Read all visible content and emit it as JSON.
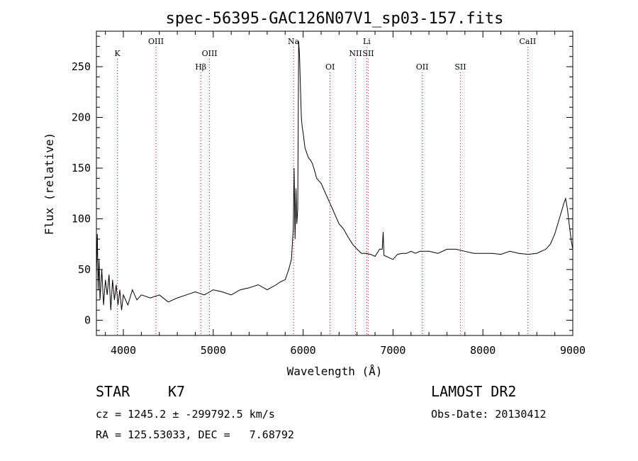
{
  "chart_data": {
    "type": "line",
    "title": "spec-56395-GAC126N07V1_sp03-157.fits",
    "xlabel": "Wavelength (Å)",
    "ylabel": "Flux (relative)",
    "xlim": [
      3700,
      9000
    ],
    "ylim": [
      -15,
      285
    ],
    "x_ticks": [
      4000,
      5000,
      6000,
      7000,
      8000,
      9000
    ],
    "y_ticks": [
      0,
      50,
      100,
      150,
      200,
      250
    ],
    "grid": false,
    "series": [
      {
        "x": [
          3700,
          3710,
          3720,
          3730,
          3740,
          3760,
          3780,
          3800,
          3820,
          3840,
          3860,
          3880,
          3900,
          3920,
          3940,
          3960,
          3980,
          4000,
          4050,
          4100,
          4150,
          4200,
          4300,
          4400,
          4500,
          4600,
          4700,
          4800,
          4900,
          5000,
          5100,
          5200,
          5300,
          5400,
          5500,
          5600,
          5700,
          5750,
          5800,
          5840,
          5870,
          5890,
          5900,
          5910,
          5920,
          5930,
          5940,
          5950,
          5960,
          5970,
          5980,
          5990,
          6000,
          6020,
          6040,
          6060,
          6080,
          6100,
          6120,
          6150,
          6200,
          6250,
          6300,
          6350,
          6400,
          6450,
          6500,
          6550,
          6600,
          6650,
          6700,
          6750,
          6800,
          6850,
          6880,
          6890,
          6900,
          6950,
          7000,
          7050,
          7100,
          7150,
          7200,
          7250,
          7300,
          7400,
          7500,
          7600,
          7700,
          7800,
          7900,
          8000,
          8100,
          8200,
          8300,
          8400,
          8500,
          8600,
          8700,
          8750,
          8800,
          8850,
          8900,
          8920,
          8940,
          8960,
          8980,
          9000
        ],
        "y": [
          45,
          85,
          30,
          60,
          20,
          50,
          15,
          40,
          25,
          45,
          10,
          40,
          20,
          35,
          15,
          30,
          10,
          25,
          15,
          30,
          20,
          25,
          22,
          25,
          18,
          22,
          25,
          28,
          25,
          30,
          28,
          25,
          30,
          32,
          35,
          30,
          35,
          38,
          40,
          50,
          60,
          90,
          150,
          80,
          130,
          95,
          110,
          275,
          260,
          230,
          200,
          190,
          185,
          170,
          165,
          160,
          158,
          155,
          150,
          140,
          135,
          125,
          115,
          105,
          95,
          90,
          82,
          75,
          70,
          66,
          66,
          65,
          63,
          70,
          70,
          87,
          64,
          62,
          60,
          65,
          66,
          66,
          68,
          66,
          68,
          68,
          66,
          70,
          70,
          68,
          66,
          66,
          66,
          65,
          68,
          66,
          65,
          66,
          70,
          75,
          85,
          100,
          115,
          120,
          110,
          95,
          80,
          70
        ]
      }
    ],
    "line_markers": [
      {
        "label": "K",
        "x": 3934,
        "row": 1
      },
      {
        "label": "OIII",
        "x": 4363,
        "row": 0
      },
      {
        "label": "Hβ",
        "x": 4861,
        "row": 2
      },
      {
        "label": "OIII",
        "x": 4959,
        "row": 1
      },
      {
        "label": "Na",
        "x": 5893,
        "row": 0
      },
      {
        "label": "OI",
        "x": 6300,
        "row": 2
      },
      {
        "label": "Li",
        "x": 6708,
        "row": 0
      },
      {
        "label": "NII",
        "x": 6583,
        "row": 1
      },
      {
        "label": "SII",
        "x": 6725,
        "row": 1
      },
      {
        "label": "OII",
        "x": 7325,
        "row": 2
      },
      {
        "label": "SII",
        "x": 7750,
        "row": 2
      },
      {
        "label": "CaII",
        "x": 8498,
        "row": 0
      }
    ],
    "marker_color": "#cc0000",
    "line_color": "#000000"
  },
  "info": {
    "object_class": "STAR",
    "subclass": "K7",
    "survey": "LAMOST DR2",
    "cz": "cz = 1245.2 ± -299792.5 km/s",
    "obs_date": "Obs-Date: 20130412",
    "coords": "RA = 125.53033, DEC =   7.68792"
  }
}
